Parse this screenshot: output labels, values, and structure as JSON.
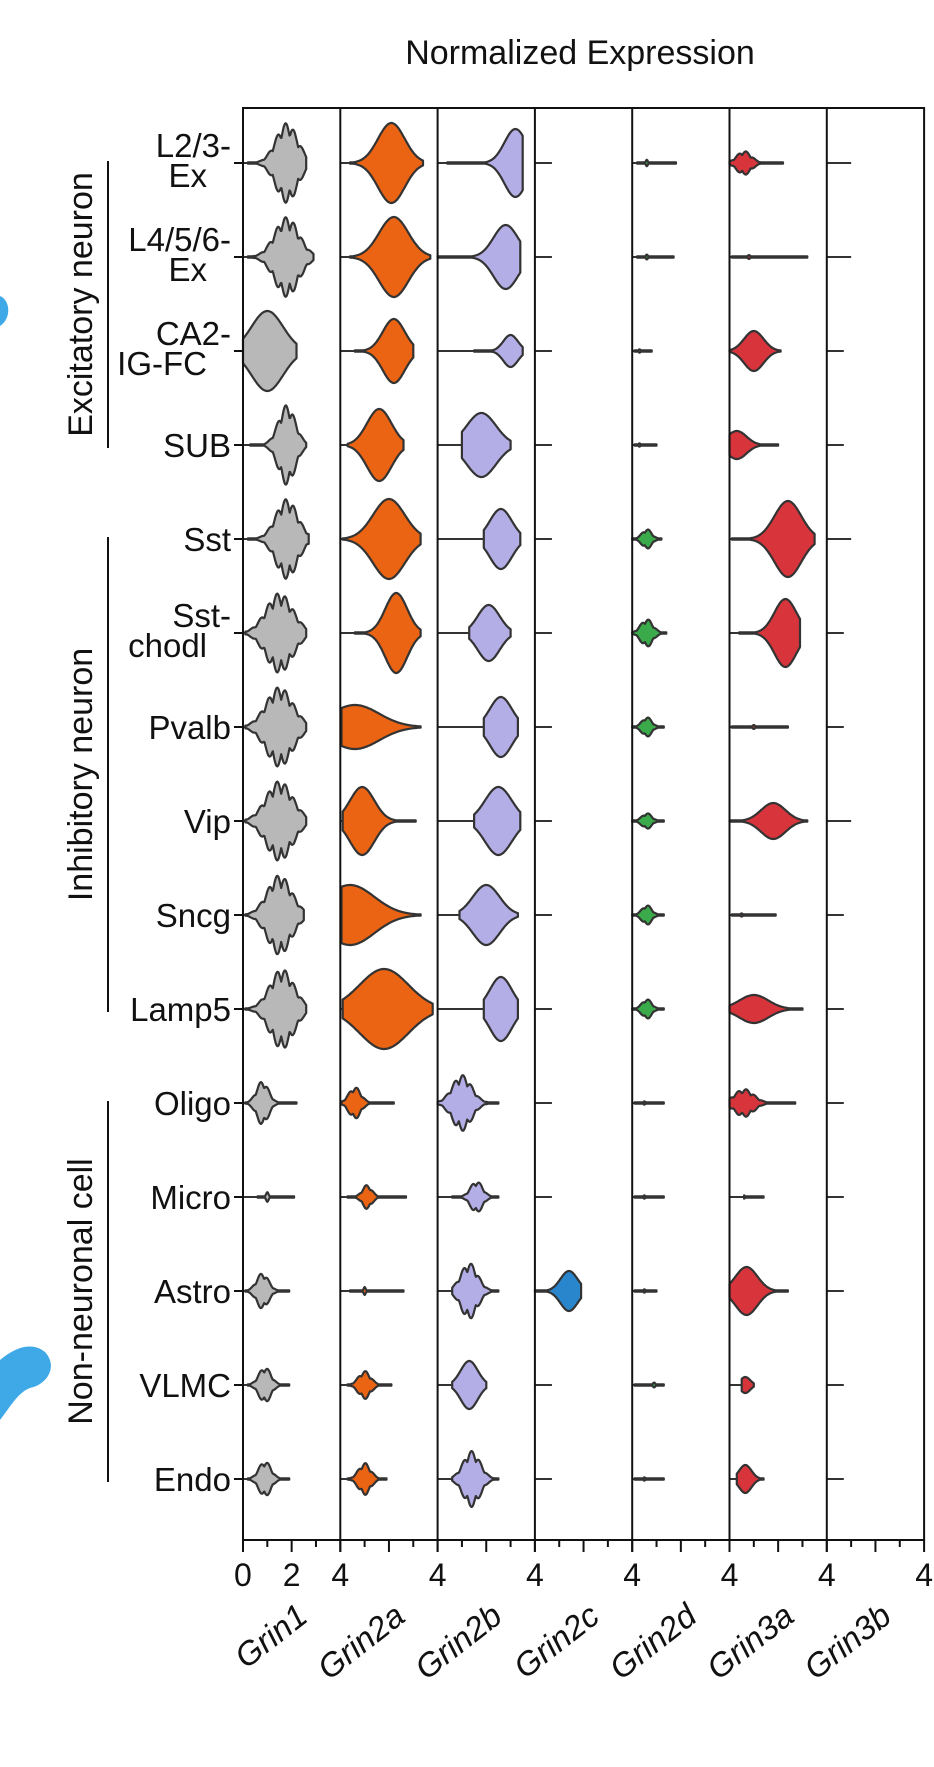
{
  "chart_data": {
    "type": "violin",
    "title": "Normalized Expression",
    "genes": [
      "Grin1",
      "Grin2a",
      "Grin2b",
      "Grin2c",
      "Grin2d",
      "Grin3a",
      "Grin3b"
    ],
    "x_ticks": [
      "0",
      "2",
      "4",
      "4",
      "4",
      "4",
      "4",
      "4",
      "4"
    ],
    "xlim": [
      0,
      4
    ],
    "groups": [
      {
        "label": "Excitatory neuron",
        "cell_types": [
          "L2/3-Ex",
          "L4/5/6-Ex",
          "CA2-IG-FC",
          "SUB"
        ]
      },
      {
        "label": "Inhibitory neuron",
        "cell_types": [
          "Sst",
          "Sst-chodl",
          "Pvalb",
          "Vip",
          "Sncg",
          "Lamp5"
        ]
      },
      {
        "label": "Non-neuronal cell",
        "cell_types": [
          "Oligo",
          "Micro",
          "Astro",
          "VLMC",
          "Endo"
        ]
      }
    ],
    "cell_types": [
      {
        "label": "L2/3-Ex",
        "line1": "L2/3-",
        "line2": "Ex"
      },
      {
        "label": "L4/5/6-Ex",
        "line1": "L4/5/6-",
        "line2": "Ex"
      },
      {
        "label": "CA2-IG-FC",
        "line1": "CA2-",
        "line2": "IG-FC"
      },
      {
        "label": "SUB",
        "line1": "SUB",
        "line2": ""
      },
      {
        "label": "Sst",
        "line1": "Sst",
        "line2": ""
      },
      {
        "label": "Sst-chodl",
        "line1": "Sst-",
        "line2": "chodl"
      },
      {
        "label": "Pvalb",
        "line1": "Pvalb",
        "line2": ""
      },
      {
        "label": "Vip",
        "line1": "Vip",
        "line2": ""
      },
      {
        "label": "Sncg",
        "line1": "Sncg",
        "line2": ""
      },
      {
        "label": "Lamp5",
        "line1": "Lamp5",
        "line2": ""
      },
      {
        "label": "Oligo",
        "line1": "Oligo",
        "line2": ""
      },
      {
        "label": "Micro",
        "line1": "Micro",
        "line2": ""
      },
      {
        "label": "Astro",
        "line1": "Astro",
        "line2": ""
      },
      {
        "label": "VLMC",
        "line1": "VLMC",
        "line2": ""
      },
      {
        "label": "Endo",
        "line1": "Endo",
        "line2": ""
      }
    ],
    "colors": {
      "Grin1": "#b8b8b8",
      "Grin2a": "#ea6413",
      "Grin2b": "#b4aee6",
      "Grin2c": "#2a86cc",
      "Grin2d": "#3aaa4a",
      "Grin3a": "#d8343c",
      "Grin3b": "#cccccc",
      "outline": "#333333",
      "axis": "#111111"
    },
    "violins": {
      "Grin1": [
        {
          "c": 1.8,
          "s": 0.45,
          "max": 2.6,
          "min": 0.2,
          "a": 1.0,
          "wob": 1
        },
        {
          "c": 1.8,
          "s": 0.5,
          "max": 2.9,
          "min": 0.2,
          "a": 1.0,
          "wob": 1
        },
        {
          "c": 1.0,
          "s": 0.65,
          "max": 2.2,
          "min": 0.0,
          "a": 1.0,
          "wob": 0
        },
        {
          "c": 1.8,
          "s": 0.35,
          "max": 2.6,
          "min": 0.3,
          "a": 1.0,
          "wob": 1
        },
        {
          "c": 1.8,
          "s": 0.45,
          "max": 2.7,
          "min": 0.2,
          "a": 1.0,
          "wob": 1
        },
        {
          "c": 1.5,
          "s": 0.55,
          "max": 2.6,
          "min": 0.1,
          "a": 1.0,
          "wob": 1
        },
        {
          "c": 1.5,
          "s": 0.55,
          "max": 2.6,
          "min": 0.1,
          "a": 1.0,
          "wob": 1
        },
        {
          "c": 1.5,
          "s": 0.55,
          "max": 2.6,
          "min": 0.1,
          "a": 1.0,
          "wob": 1
        },
        {
          "c": 1.5,
          "s": 0.5,
          "max": 2.5,
          "min": 0.1,
          "a": 1.0,
          "wob": 1
        },
        {
          "c": 1.6,
          "s": 0.5,
          "max": 2.6,
          "min": 0.1,
          "a": 1.0,
          "wob": 1
        },
        {
          "c": 0.8,
          "s": 0.25,
          "max": 2.2,
          "min": 0.1,
          "a": 0.55,
          "wob": 1
        },
        {
          "c": 1.0,
          "s": 0.05,
          "max": 2.1,
          "min": 0.6,
          "a": 0.12,
          "wob": 0
        },
        {
          "c": 0.8,
          "s": 0.25,
          "max": 1.9,
          "min": 0.1,
          "a": 0.45,
          "wob": 1
        },
        {
          "c": 0.9,
          "s": 0.25,
          "max": 1.9,
          "min": 0.2,
          "a": 0.45,
          "wob": 1
        },
        {
          "c": 0.9,
          "s": 0.25,
          "max": 1.9,
          "min": 0.2,
          "a": 0.45,
          "wob": 1
        }
      ],
      "Grin2a": [
        {
          "c": 2.1,
          "s": 0.55,
          "max": 3.4,
          "min": 0.4,
          "a": 1.0,
          "wob": 0
        },
        {
          "c": 2.2,
          "s": 0.6,
          "max": 3.7,
          "min": 0.4,
          "a": 1.0,
          "wob": 0
        },
        {
          "c": 2.2,
          "s": 0.45,
          "max": 3.0,
          "min": 0.6,
          "a": 0.8,
          "wob": 0
        },
        {
          "c": 1.6,
          "s": 0.5,
          "max": 2.6,
          "min": 0.3,
          "a": 0.9,
          "wob": 0
        },
        {
          "c": 2.0,
          "s": 0.65,
          "max": 3.3,
          "min": 0.1,
          "a": 1.0,
          "wob": 0
        },
        {
          "c": 2.3,
          "s": 0.45,
          "max": 3.3,
          "min": 0.6,
          "a": 1.0,
          "wob": 0
        },
        {
          "c": 0.6,
          "s": 1.0,
          "max": 3.3,
          "min": 0.05,
          "a": 0.55,
          "wob": 0
        },
        {
          "c": 0.9,
          "s": 0.5,
          "max": 3.1,
          "min": 0.1,
          "a": 0.85,
          "wob": 0
        },
        {
          "c": 0.4,
          "s": 1.0,
          "max": 3.3,
          "min": 0.05,
          "a": 0.75,
          "wob": 0
        },
        {
          "c": 1.8,
          "s": 1.0,
          "max": 3.8,
          "min": 0.1,
          "a": 1.0,
          "wob": 0
        },
        {
          "c": 0.6,
          "s": 0.25,
          "max": 2.2,
          "min": 0.05,
          "a": 0.4,
          "wob": 1
        },
        {
          "c": 1.1,
          "s": 0.2,
          "max": 2.7,
          "min": 0.3,
          "a": 0.3,
          "wob": 1
        },
        {
          "c": 1.0,
          "s": 0.04,
          "max": 2.6,
          "min": 0.4,
          "a": 0.1,
          "wob": 0
        },
        {
          "c": 1.0,
          "s": 0.25,
          "max": 2.1,
          "min": 0.3,
          "a": 0.35,
          "wob": 1
        },
        {
          "c": 1.0,
          "s": 0.25,
          "max": 1.9,
          "min": 0.3,
          "a": 0.4,
          "wob": 1
        }
      ],
      "Grin2b": [
        {
          "c": 3.2,
          "s": 0.45,
          "max": 3.5,
          "min": 0.4,
          "a": 0.85,
          "wob": 0
        },
        {
          "c": 2.8,
          "s": 0.5,
          "max": 3.4,
          "min": 0.0,
          "a": 0.8,
          "wob": 0
        },
        {
          "c": 3.0,
          "s": 0.3,
          "max": 3.5,
          "min": 1.5,
          "a": 0.4,
          "wob": 0
        },
        {
          "c": 1.8,
          "s": 0.6,
          "max": 3.0,
          "min": 1.0,
          "a": 0.8,
          "wob": 0
        },
        {
          "c": 2.6,
          "s": 0.45,
          "max": 3.4,
          "min": 1.9,
          "a": 0.75,
          "wob": 0
        },
        {
          "c": 2.1,
          "s": 0.45,
          "max": 3.0,
          "min": 1.3,
          "a": 0.7,
          "wob": 0
        },
        {
          "c": 2.6,
          "s": 0.45,
          "max": 3.3,
          "min": 1.9,
          "a": 0.75,
          "wob": 0
        },
        {
          "c": 2.5,
          "s": 0.55,
          "max": 3.4,
          "min": 1.5,
          "a": 0.85,
          "wob": 0
        },
        {
          "c": 2.0,
          "s": 0.55,
          "max": 3.3,
          "min": 0.9,
          "a": 0.75,
          "wob": 0
        },
        {
          "c": 2.6,
          "s": 0.45,
          "max": 3.3,
          "min": 1.9,
          "a": 0.8,
          "wob": 0
        },
        {
          "c": 1.0,
          "s": 0.4,
          "max": 2.5,
          "min": 0.0,
          "a": 0.7,
          "wob": 1
        },
        {
          "c": 1.6,
          "s": 0.25,
          "max": 2.5,
          "min": 0.6,
          "a": 0.4,
          "wob": 1
        },
        {
          "c": 1.3,
          "s": 0.35,
          "max": 2.5,
          "min": 0.6,
          "a": 0.7,
          "wob": 1
        },
        {
          "c": 1.3,
          "s": 0.35,
          "max": 2.0,
          "min": 0.6,
          "a": 0.6,
          "wob": 0
        },
        {
          "c": 1.4,
          "s": 0.35,
          "max": 2.5,
          "min": 0.6,
          "a": 0.7,
          "wob": 1
        }
      ],
      "Grin2c": [
        {
          "c": 0,
          "s": 0,
          "max": 0.7,
          "min": 0,
          "a": 0,
          "wob": 0
        },
        {
          "c": 0,
          "s": 0,
          "max": 0.7,
          "min": 0,
          "a": 0,
          "wob": 0
        },
        {
          "c": 0,
          "s": 0,
          "max": 0.7,
          "min": 0,
          "a": 0,
          "wob": 0
        },
        {
          "c": 0,
          "s": 0,
          "max": 0.7,
          "min": 0,
          "a": 0,
          "wob": 0
        },
        {
          "c": 0,
          "s": 0,
          "max": 0.7,
          "min": 0,
          "a": 0,
          "wob": 0
        },
        {
          "c": 0,
          "s": 0,
          "max": 0.7,
          "min": 0,
          "a": 0,
          "wob": 0
        },
        {
          "c": 0,
          "s": 0,
          "max": 0.7,
          "min": 0,
          "a": 0,
          "wob": 0
        },
        {
          "c": 0,
          "s": 0,
          "max": 0.7,
          "min": 0,
          "a": 0,
          "wob": 0
        },
        {
          "c": 0,
          "s": 0,
          "max": 0.7,
          "min": 0,
          "a": 0,
          "wob": 0
        },
        {
          "c": 0,
          "s": 0,
          "max": 0.7,
          "min": 0,
          "a": 0,
          "wob": 0
        },
        {
          "c": 0,
          "s": 0,
          "max": 0.7,
          "min": 0,
          "a": 0,
          "wob": 0
        },
        {
          "c": 0,
          "s": 0,
          "max": 0.7,
          "min": 0,
          "a": 0,
          "wob": 0
        },
        {
          "c": 1.4,
          "s": 0.35,
          "max": 1.9,
          "min": 0.0,
          "a": 0.5,
          "wob": 0
        },
        {
          "c": 0,
          "s": 0,
          "max": 0.7,
          "min": 0,
          "a": 0,
          "wob": 0
        },
        {
          "c": 0,
          "s": 0,
          "max": 0.7,
          "min": 0,
          "a": 0,
          "wob": 0
        }
      ],
      "Grin2d": [
        {
          "c": 0.6,
          "s": 0.04,
          "max": 1.8,
          "min": 0.2,
          "a": 0.08,
          "wob": 0
        },
        {
          "c": 0.6,
          "s": 0.04,
          "max": 1.7,
          "min": 0.2,
          "a": 0.06,
          "wob": 0
        },
        {
          "c": 0.3,
          "s": 0.04,
          "max": 0.8,
          "min": 0.1,
          "a": 0.04,
          "wob": 0
        },
        {
          "c": 0.3,
          "s": 0.04,
          "max": 1.0,
          "min": 0.1,
          "a": 0.04,
          "wob": 0
        },
        {
          "c": 0.6,
          "s": 0.2,
          "max": 1.2,
          "min": 0.0,
          "a": 0.25,
          "wob": 1
        },
        {
          "c": 0.6,
          "s": 0.25,
          "max": 1.4,
          "min": 0.0,
          "a": 0.35,
          "wob": 1
        },
        {
          "c": 0.6,
          "s": 0.2,
          "max": 1.3,
          "min": 0.0,
          "a": 0.25,
          "wob": 1
        },
        {
          "c": 0.6,
          "s": 0.2,
          "max": 1.3,
          "min": 0.0,
          "a": 0.2,
          "wob": 1
        },
        {
          "c": 0.6,
          "s": 0.2,
          "max": 1.3,
          "min": 0.0,
          "a": 0.25,
          "wob": 1
        },
        {
          "c": 0.6,
          "s": 0.2,
          "max": 1.3,
          "min": 0.0,
          "a": 0.25,
          "wob": 1
        },
        {
          "c": 0.5,
          "s": 0.04,
          "max": 1.3,
          "min": 0.1,
          "a": 0.04,
          "wob": 0
        },
        {
          "c": 0.5,
          "s": 0.04,
          "max": 1.3,
          "min": 0.1,
          "a": 0.04,
          "wob": 0
        },
        {
          "c": 0.5,
          "s": 0.04,
          "max": 1.0,
          "min": 0.1,
          "a": 0.04,
          "wob": 0
        },
        {
          "c": 0.9,
          "s": 0.05,
          "max": 1.3,
          "min": 0.1,
          "a": 0.06,
          "wob": 0
        },
        {
          "c": 0.5,
          "s": 0.04,
          "max": 1.3,
          "min": 0.1,
          "a": 0.04,
          "wob": 0
        }
      ],
      "Grin3a": [
        {
          "c": 0.6,
          "s": 0.3,
          "max": 2.2,
          "min": 0.0,
          "a": 0.3,
          "wob": 1
        },
        {
          "c": 0.8,
          "s": 0.05,
          "max": 3.2,
          "min": 0.1,
          "a": 0.05,
          "wob": 0
        },
        {
          "c": 1.0,
          "s": 0.4,
          "max": 2.1,
          "min": 0.0,
          "a": 0.5,
          "wob": 0
        },
        {
          "c": 0.3,
          "s": 0.4,
          "max": 2.0,
          "min": 0.0,
          "a": 0.35,
          "wob": 0
        },
        {
          "c": 2.4,
          "s": 0.55,
          "max": 3.5,
          "min": 0.1,
          "a": 0.95,
          "wob": 0
        },
        {
          "c": 2.3,
          "s": 0.45,
          "max": 2.9,
          "min": 0.4,
          "a": 0.85,
          "wob": 0
        },
        {
          "c": 1.0,
          "s": 0.05,
          "max": 2.4,
          "min": 0.1,
          "a": 0.05,
          "wob": 0
        },
        {
          "c": 1.8,
          "s": 0.5,
          "max": 3.2,
          "min": 0.0,
          "a": 0.45,
          "wob": 0
        },
        {
          "c": 0.5,
          "s": 0.04,
          "max": 1.9,
          "min": 0.1,
          "a": 0.04,
          "wob": 0
        },
        {
          "c": 1.0,
          "s": 0.6,
          "max": 3.0,
          "min": 0.0,
          "a": 0.35,
          "wob": 0
        },
        {
          "c": 0.6,
          "s": 0.4,
          "max": 2.7,
          "min": 0.0,
          "a": 0.35,
          "wob": 1
        },
        {
          "c": 0.6,
          "s": 0.03,
          "max": 1.4,
          "min": 0.6,
          "a": 0.04,
          "wob": 0
        },
        {
          "c": 0.7,
          "s": 0.45,
          "max": 2.4,
          "min": 0.0,
          "a": 0.6,
          "wob": 0
        },
        {
          "c": 0.65,
          "s": 0.2,
          "max": 1.0,
          "min": 0.5,
          "a": 0.2,
          "wob": 0
        },
        {
          "c": 0.65,
          "s": 0.25,
          "max": 1.4,
          "min": 0.3,
          "a": 0.35,
          "wob": 0
        }
      ],
      "Grin3b": [
        {
          "c": 0,
          "s": 0,
          "max": 1.0,
          "min": 0,
          "a": 0,
          "wob": 0
        },
        {
          "c": 0,
          "s": 0,
          "max": 1.0,
          "min": 0,
          "a": 0,
          "wob": 0
        },
        {
          "c": 0,
          "s": 0,
          "max": 0.7,
          "min": 0,
          "a": 0,
          "wob": 0
        },
        {
          "c": 0,
          "s": 0,
          "max": 0.7,
          "min": 0,
          "a": 0,
          "wob": 0
        },
        {
          "c": 0,
          "s": 0,
          "max": 1.0,
          "min": 0,
          "a": 0,
          "wob": 0
        },
        {
          "c": 0,
          "s": 0,
          "max": 0.7,
          "min": 0,
          "a": 0,
          "wob": 0
        },
        {
          "c": 0,
          "s": 0,
          "max": 0.7,
          "min": 0,
          "a": 0,
          "wob": 0
        },
        {
          "c": 0,
          "s": 0,
          "max": 1.0,
          "min": 0,
          "a": 0,
          "wob": 0
        },
        {
          "c": 0,
          "s": 0,
          "max": 0.7,
          "min": 0,
          "a": 0,
          "wob": 0
        },
        {
          "c": 0,
          "s": 0,
          "max": 0.7,
          "min": 0,
          "a": 0,
          "wob": 0
        },
        {
          "c": 0,
          "s": 0,
          "max": 0.7,
          "min": 0,
          "a": 0,
          "wob": 0
        },
        {
          "c": 0,
          "s": 0,
          "max": 0.7,
          "min": 0,
          "a": 0,
          "wob": 0
        },
        {
          "c": 0,
          "s": 0,
          "max": 0.7,
          "min": 0,
          "a": 0,
          "wob": 0
        },
        {
          "c": 0,
          "s": 0,
          "max": 0.7,
          "min": 0,
          "a": 0,
          "wob": 0
        },
        {
          "c": 0,
          "s": 0,
          "max": 0.7,
          "min": 0,
          "a": 0,
          "wob": 0
        }
      ]
    }
  }
}
